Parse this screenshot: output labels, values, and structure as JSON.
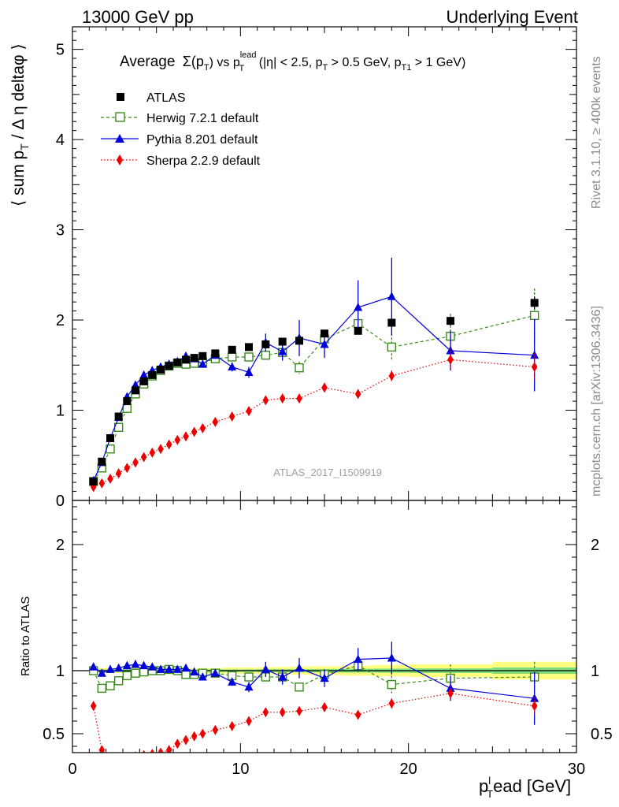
{
  "header": {
    "left": "13000 GeV pp",
    "right": "Underlying Event"
  },
  "side_labels": {
    "rivet": "Rivet 3.1.10, ≥ 400k events",
    "mcplots": "mcplots.cern.ch [arXiv:1306.3436]"
  },
  "colors": {
    "atlas": "#000000",
    "herwig": "#3a8a1e",
    "pythia": "#0000dd",
    "sherpa": "#ee0000",
    "band_outer": "#ffff80",
    "band_inner": "#7cdc7c",
    "watermark": "#a0a0a0"
  },
  "chart_data": [
    {
      "type": "scatter",
      "title": "Average Σ(p_T) vs p_T^lead (|η| < 2.5, p_T > 0.5 GeV, p_T1 > 1 GeV)",
      "title_parts": {
        "average": "Average",
        "sigma": "Σ(p",
        "pt_sub": "T",
        "vs": ") vs p",
        "lead_sup": "lead",
        "lead_sub": "T",
        "cuts1": " (|η| < 2.5, p",
        "cuts1_sub": "T",
        "cuts2": " > 0.5 GeV, p",
        "cuts2_sub": "T1",
        "cuts3": " > 1 GeV)"
      },
      "ylabel": "⟨ sum p_T / Δ η deltaφ ⟩",
      "ylabel_parts": {
        "a": "⟨ sum p",
        "sub": "T",
        "b": " / Δ η deltaφ ⟩"
      },
      "watermark": "ATLAS_2017_I1509919",
      "xlim": [
        0,
        30
      ],
      "ylim": [
        0,
        5.25
      ],
      "yticks": [
        0,
        1,
        2,
        3,
        4,
        5
      ],
      "legend_position": "top-left",
      "x": [
        1.25,
        1.75,
        2.25,
        2.75,
        3.25,
        3.75,
        4.25,
        4.75,
        5.25,
        5.75,
        6.25,
        6.75,
        7.25,
        7.75,
        8.5,
        9.5,
        10.5,
        11.5,
        12.5,
        13.5,
        15,
        17,
        19,
        22.5,
        27.5
      ],
      "series": [
        {
          "name": "ATLAS",
          "key": "atlas",
          "values": [
            0.21,
            0.43,
            0.69,
            0.93,
            1.1,
            1.22,
            1.32,
            1.39,
            1.45,
            1.49,
            1.53,
            1.56,
            1.58,
            1.6,
            1.63,
            1.67,
            1.7,
            1.73,
            1.76,
            1.77,
            1.85,
            1.88,
            1.97,
            1.99,
            2.19
          ],
          "errors": [
            0.01,
            0.01,
            0.01,
            0.01,
            0.01,
            0.01,
            0.01,
            0.01,
            0.01,
            0.01,
            0.01,
            0.01,
            0.01,
            0.01,
            0.01,
            0.01,
            0.01,
            0.01,
            0.01,
            0.02,
            0.02,
            0.03,
            0.04,
            0.05,
            0.07
          ]
        },
        {
          "name": "Herwig 7.2.1 default",
          "key": "herwig",
          "values": [
            0.21,
            0.36,
            0.57,
            0.81,
            1.02,
            1.18,
            1.29,
            1.38,
            1.44,
            1.49,
            1.52,
            1.51,
            1.52,
            1.53,
            1.57,
            1.59,
            1.59,
            1.61,
            1.64,
            1.47,
            1.79,
            1.96,
            1.7,
            1.82,
            2.05
          ],
          "errors": [
            0.01,
            0.01,
            0.01,
            0.01,
            0.01,
            0.01,
            0.01,
            0.01,
            0.01,
            0.01,
            0.01,
            0.01,
            0.02,
            0.02,
            0.02,
            0.03,
            0.04,
            0.05,
            0.06,
            0.07,
            0.09,
            0.12,
            0.15,
            0.25,
            0.3
          ]
        },
        {
          "name": "Pythia 8.201 default",
          "key": "pythia",
          "values": [
            0.22,
            0.42,
            0.69,
            0.92,
            1.15,
            1.28,
            1.39,
            1.44,
            1.48,
            1.51,
            1.54,
            1.6,
            1.57,
            1.51,
            1.61,
            1.48,
            1.42,
            1.75,
            1.65,
            1.8,
            1.73,
            2.14,
            2.26,
            1.66,
            1.61
          ],
          "errors": [
            0.01,
            0.01,
            0.01,
            0.01,
            0.01,
            0.01,
            0.02,
            0.02,
            0.02,
            0.02,
            0.02,
            0.03,
            0.03,
            0.04,
            0.04,
            0.05,
            0.06,
            0.1,
            0.1,
            0.2,
            0.15,
            0.3,
            0.43,
            0.22,
            0.4
          ]
        },
        {
          "name": "Sherpa 2.2.9 default",
          "key": "sherpa",
          "values": [
            0.15,
            0.19,
            0.24,
            0.3,
            0.36,
            0.42,
            0.48,
            0.53,
            0.57,
            0.62,
            0.67,
            0.71,
            0.76,
            0.8,
            0.87,
            0.93,
            0.99,
            1.11,
            1.13,
            1.13,
            1.25,
            1.18,
            1.38,
            1.56,
            1.48
          ],
          "errors": [
            0.01,
            0.01,
            0.01,
            0.01,
            0.01,
            0.01,
            0.01,
            0.01,
            0.01,
            0.01,
            0.01,
            0.01,
            0.01,
            0.01,
            0.02,
            0.02,
            0.02,
            0.03,
            0.03,
            0.04,
            0.05,
            0.05,
            0.06,
            0.12,
            0.15
          ]
        }
      ]
    },
    {
      "type": "scatter",
      "ylabel": "Ratio to ATLAS",
      "xlabel": "p_T^l ead [GeV]",
      "xlabel_parts": {
        "p": "p",
        "sup": "l",
        "sub": "T",
        "rest": "ead [GeV]"
      },
      "xlim": [
        0,
        30
      ],
      "xticks": [
        0,
        10,
        20,
        30
      ],
      "ylim": [
        0.35,
        2.35
      ],
      "yticks": [
        0.5,
        1,
        2
      ],
      "reference": 1,
      "x": [
        1.25,
        1.75,
        2.25,
        2.75,
        3.25,
        3.75,
        4.25,
        4.75,
        5.25,
        5.75,
        6.25,
        6.75,
        7.25,
        7.75,
        8.5,
        9.5,
        10.5,
        11.5,
        12.5,
        13.5,
        15,
        17,
        19,
        22.5,
        27.5
      ],
      "band": {
        "edges": [
          1,
          1.5,
          2,
          2.5,
          3,
          3.5,
          4,
          4.5,
          5,
          5.5,
          6,
          6.5,
          7,
          7.5,
          8,
          9,
          10,
          11,
          12,
          13,
          14,
          16,
          18,
          20,
          25,
          30
        ],
        "inner": [
          0.01,
          0.01,
          0.01,
          0.01,
          0.01,
          0.01,
          0.01,
          0.01,
          0.01,
          0.01,
          0.01,
          0.01,
          0.01,
          0.01,
          0.01,
          0.01,
          0.01,
          0.012,
          0.012,
          0.012,
          0.013,
          0.015,
          0.016,
          0.018,
          0.025
        ],
        "outer": [
          0.02,
          0.02,
          0.02,
          0.02,
          0.02,
          0.02,
          0.02,
          0.02,
          0.02,
          0.02,
          0.02,
          0.02,
          0.02,
          0.02,
          0.02,
          0.025,
          0.025,
          0.028,
          0.03,
          0.032,
          0.035,
          0.04,
          0.045,
          0.05,
          0.07
        ]
      },
      "series": [
        {
          "name": "Herwig 7.2.1 default",
          "key": "herwig",
          "values": [
            1.0,
            0.86,
            0.88,
            0.92,
            0.96,
            0.98,
            0.99,
            1.0,
            1.0,
            1.01,
            1.0,
            0.97,
            0.97,
            0.98,
            0.98,
            0.96,
            0.95,
            0.95,
            0.95,
            0.87,
            0.97,
            1.04,
            0.89,
            0.94,
            0.95
          ],
          "errors": [
            0.01,
            0.01,
            0.01,
            0.01,
            0.01,
            0.01,
            0.01,
            0.01,
            0.01,
            0.01,
            0.01,
            0.01,
            0.01,
            0.01,
            0.01,
            0.02,
            0.02,
            0.03,
            0.03,
            0.03,
            0.04,
            0.06,
            0.07,
            0.11,
            0.12
          ]
        },
        {
          "name": "Pythia 8.201 default",
          "key": "pythia",
          "values": [
            1.03,
            0.98,
            1.01,
            1.02,
            1.04,
            1.05,
            1.04,
            1.03,
            1.01,
            1.01,
            1.01,
            1.02,
            0.99,
            0.95,
            0.98,
            0.91,
            0.87,
            1.01,
            0.95,
            1.02,
            0.94,
            1.09,
            1.1,
            0.86,
            0.78
          ],
          "errors": [
            0.01,
            0.01,
            0.01,
            0.01,
            0.01,
            0.01,
            0.01,
            0.01,
            0.01,
            0.01,
            0.01,
            0.02,
            0.02,
            0.02,
            0.02,
            0.03,
            0.04,
            0.06,
            0.06,
            0.08,
            0.07,
            0.09,
            0.13,
            0.1,
            0.21
          ]
        },
        {
          "name": "Sherpa 2.2.9 default",
          "key": "sherpa",
          "values": [
            0.72,
            0.37,
            0.3,
            0.28,
            0.3,
            0.32,
            0.33,
            0.34,
            0.35,
            0.37,
            0.42,
            0.45,
            0.48,
            0.5,
            0.53,
            0.56,
            0.6,
            0.67,
            0.67,
            0.68,
            0.71,
            0.65,
            0.74,
            0.82,
            0.72
          ],
          "errors": [
            0.01,
            0.01,
            0.01,
            0.01,
            0.01,
            0.01,
            0.01,
            0.01,
            0.01,
            0.01,
            0.01,
            0.01,
            0.01,
            0.01,
            0.01,
            0.01,
            0.01,
            0.02,
            0.02,
            0.02,
            0.03,
            0.03,
            0.04,
            0.06,
            0.07
          ]
        }
      ]
    }
  ]
}
